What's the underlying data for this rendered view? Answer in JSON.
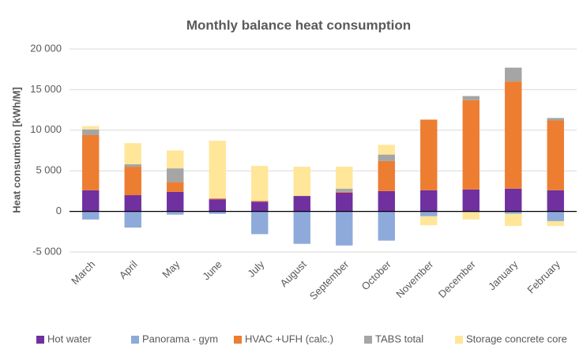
{
  "chart_data": {
    "type": "bar",
    "stacked": true,
    "title": "Monthly balance heat consumption",
    "y_label": "Heat consumtion  [kWh/M]",
    "categories": [
      "March",
      "April",
      "May",
      "June",
      "July",
      "August",
      "September",
      "October",
      "November",
      "December",
      "January",
      "February"
    ],
    "series": [
      {
        "name": "Hot water",
        "color": "#7030a0",
        "values": [
          2600,
          2000,
          2400,
          1500,
          1200,
          1900,
          2300,
          2500,
          2600,
          2700,
          2800,
          2600
        ]
      },
      {
        "name": "Panorama - gym",
        "color": "#8eaadb",
        "values": [
          -1000,
          -2000,
          -400,
          -300,
          -2800,
          -4000,
          -4200,
          -3600,
          -600,
          -100,
          -300,
          -1200
        ]
      },
      {
        "name": "HVAC +UFH (calc.)",
        "color": "#ed7d31",
        "values": [
          6800,
          3500,
          1200,
          100,
          100,
          0,
          100,
          3700,
          8700,
          11000,
          13200,
          8600
        ]
      },
      {
        "name": "TABS total",
        "color": "#a5a5a5",
        "values": [
          700,
          300,
          1700,
          0,
          0,
          0,
          400,
          800,
          0,
          500,
          1700,
          300
        ]
      },
      {
        "name": "Storage concrete core",
        "color": "#ffe699",
        "values": [
          400,
          2600,
          2200,
          7100,
          4300,
          3600,
          2700,
          1200,
          -1100,
          -900,
          -1500,
          -600
        ]
      }
    ],
    "ylim": [
      -5000,
      20000
    ],
    "yticks": [
      {
        "value": -5000,
        "label": "-5 000"
      },
      0,
      {
        "value": 5000,
        "label": "5 000"
      },
      {
        "value": 10000,
        "label": "10 000"
      },
      {
        "value": 15000,
        "label": "15 000"
      },
      {
        "value": 20000,
        "label": "20 000"
      }
    ],
    "grid": true,
    "legend": "bottom"
  }
}
